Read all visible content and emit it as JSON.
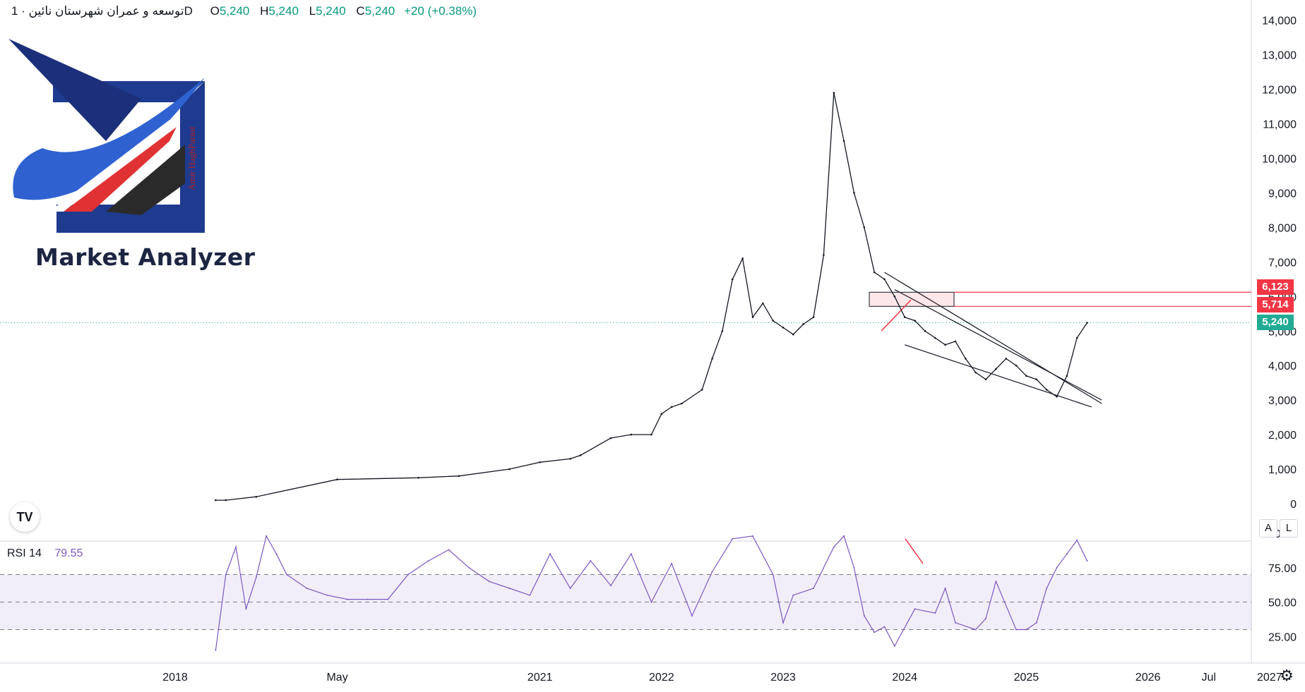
{
  "header": {
    "symbol": "توسعه و عمران شهرستان نائین",
    "separator": "·",
    "timeframe": "1D",
    "open_label": "O",
    "open": "5,240",
    "high_label": "H",
    "high": "5,240",
    "low_label": "L",
    "low": "5,240",
    "close_label": "C",
    "close": "5,240",
    "change": "+20 (+0.38%)"
  },
  "logo": {
    "brand_text": "Market Analyzer",
    "signature": "Amir HaghParast"
  },
  "rsi": {
    "label": "RSI 14",
    "value": "79.55"
  },
  "buttons": {
    "auto": "A",
    "log": "L"
  },
  "tradingview_logo": "TV",
  "price_tags": [
    {
      "text": "6,123",
      "color": "#f23645"
    },
    {
      "text": "5,714",
      "color": "#f23645"
    },
    {
      "text": "5,240",
      "color": "#22ab94"
    }
  ],
  "colors": {
    "price": "#131722",
    "rsi": "#7e57c2",
    "zone": "#f23645",
    "last_price": "#22ab94"
  },
  "chart_data": [
    {
      "type": "line",
      "title": "توسعه و عمران شهرستان نائین · 1D",
      "y_ticks": [
        "0",
        "1,000",
        "2,000",
        "3,000",
        "4,000",
        "5,000",
        "6,000",
        "7,000",
        "8,000",
        "9,000",
        "10,000",
        "11,000",
        "12,000",
        "13,000",
        "14,000"
      ],
      "ylim": [
        0,
        14000
      ],
      "x_ticks": [
        "2018",
        "May",
        "2021",
        "2022",
        "2023",
        "2024",
        "2025",
        "2026",
        "Jul",
        "2027",
        "Jul"
      ],
      "series": [
        {
          "x": [
            "2018-05",
            "2018-06",
            "2018-09",
            "2019-05",
            "2020-01",
            "2020-05",
            "2020-10",
            "2021-01",
            "2021-04",
            "2021-05",
            "2021-08",
            "2021-10",
            "2021-12",
            "2022-01",
            "2022-02",
            "2022-03",
            "2022-05",
            "2022-06",
            "2022-07",
            "2022-08",
            "2022-09",
            "2022-10",
            "2022-11",
            "2022-12",
            "2023-01",
            "2023-02",
            "2023-03",
            "2023-04",
            "2023-05",
            "2023-06",
            "2023-07",
            "2023-08",
            "2023-09",
            "2023-10",
            "2023-11",
            "2023-12",
            "2024-01",
            "2024-02",
            "2024-03",
            "2024-04",
            "2024-05",
            "2024-06",
            "2024-07",
            "2024-08",
            "2024-09",
            "2024-10",
            "2024-11",
            "2024-12",
            "2025-01",
            "2025-02",
            "2025-03",
            "2025-04",
            "2025-05",
            "2025-06",
            "2025-07"
          ],
          "values": [
            100,
            100,
            200,
            700,
            750,
            800,
            1000,
            1200,
            1300,
            1400,
            1900,
            2000,
            2000,
            2600,
            2800,
            2900,
            3300,
            4200,
            5000,
            6500,
            7100,
            5400,
            5800,
            5300,
            5100,
            4900,
            5200,
            5400,
            7200,
            11900,
            10500,
            9000,
            8000,
            6700,
            6500,
            6000,
            5400,
            5300,
            5000,
            4800,
            4600,
            4700,
            4200,
            3800,
            3600,
            3900,
            4200,
            4000,
            3700,
            3600,
            3300,
            3100,
            3700,
            4800,
            5240
          ]
        }
      ],
      "drawings": {
        "channel_upper": {
          "from": [
            "2023-11",
            6700
          ],
          "to": [
            "2025-06",
            2900
          ]
        },
        "channel_lower": {
          "from": [
            "2023-12",
            6200
          ],
          "to": [
            "2025-06",
            3000
          ]
        },
        "wedge_bottom": {
          "from": [
            "2024-01",
            4600
          ],
          "to": [
            "2025-05",
            2800
          ]
        },
        "target_zone": {
          "low": 5714,
          "high": 6123
        },
        "last_price": 5240
      }
    },
    {
      "type": "line",
      "title": "RSI 14",
      "y_ticks": [
        "25.00",
        "50.00",
        "75.00",
        "100.00"
      ],
      "ylim": [
        0,
        100
      ],
      "bands": [
        30,
        50,
        70
      ],
      "series": [
        {
          "x": [
            "2018-05",
            "2018-06",
            "2018-07",
            "2018-08",
            "2018-09",
            "2018-10",
            "2018-11",
            "2018-12",
            "2019-02",
            "2019-04",
            "2019-06",
            "2019-08",
            "2019-10",
            "2019-12",
            "2020-02",
            "2020-04",
            "2020-06",
            "2020-08",
            "2020-10",
            "2020-12",
            "2021-02",
            "2021-04",
            "2021-06",
            "2021-08",
            "2021-10",
            "2021-12",
            "2022-02",
            "2022-04",
            "2022-06",
            "2022-08",
            "2022-10",
            "2022-12",
            "2023-01",
            "2023-02",
            "2023-04",
            "2023-06",
            "2023-07",
            "2023-08",
            "2023-09",
            "2023-10",
            "2023-11",
            "2023-12",
            "2024-02",
            "2024-04",
            "2024-05",
            "2024-06",
            "2024-08",
            "2024-09",
            "2024-10",
            "2024-12",
            "2025-01",
            "2025-02",
            "2025-03",
            "2025-04",
            "2025-05",
            "2025-06",
            "2025-07"
          ],
          "values": [
            15,
            70,
            90,
            45,
            68,
            98,
            85,
            70,
            60,
            55,
            52,
            52,
            52,
            70,
            80,
            88,
            75,
            65,
            60,
            55,
            85,
            60,
            80,
            62,
            85,
            50,
            78,
            40,
            72,
            96,
            98,
            70,
            35,
            55,
            60,
            90,
            98,
            75,
            40,
            28,
            32,
            18,
            45,
            42,
            60,
            35,
            30,
            38,
            65,
            30,
            30,
            35,
            60,
            75,
            85,
            95,
            80
          ]
        }
      ]
    }
  ]
}
